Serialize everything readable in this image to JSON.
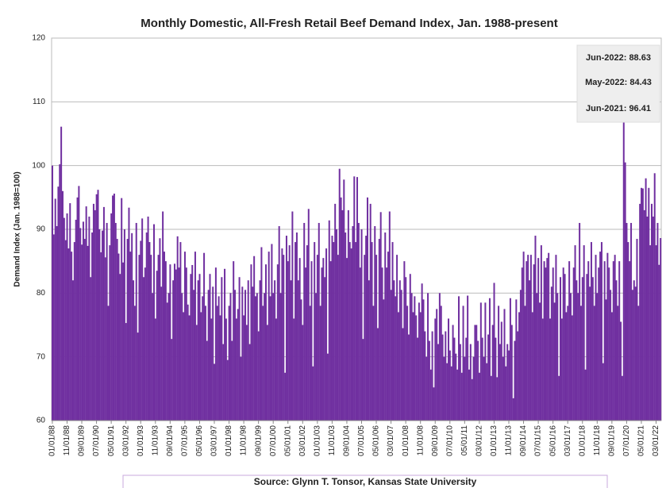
{
  "chart_data": {
    "type": "bar",
    "title": "Monthly Domestic, All-Fresh Retail Beef Demand Index, Jan. 1988-present",
    "y_label": "Demand Index (Jan. 1988=100)",
    "annotations": [
      "Jun-2022: 88.63",
      "May-2022: 84.43",
      "Jun-2021: 96.41"
    ],
    "source": "Source: Glynn T. Tonsor, Kansas State University",
    "color": "#7030a0",
    "ylim": [
      60,
      120
    ],
    "yticks": [
      60,
      70,
      80,
      90,
      100,
      110,
      120
    ],
    "grid": true,
    "categories": [
      "01/01/88",
      null,
      null,
      null,
      null,
      null,
      null,
      null,
      null,
      null,
      "11/01/88",
      null,
      null,
      null,
      null,
      null,
      null,
      null,
      null,
      null,
      "09/01/89",
      null,
      null,
      null,
      null,
      null,
      null,
      null,
      null,
      null,
      "07/01/90",
      null,
      null,
      null,
      null,
      null,
      null,
      null,
      null,
      null,
      "05/01/91",
      null,
      null,
      null,
      null,
      null,
      null,
      null,
      null,
      null,
      "03/01/92",
      null,
      null,
      null,
      null,
      null,
      null,
      null,
      null,
      null,
      "01/01/93",
      null,
      null,
      null,
      null,
      null,
      null,
      null,
      null,
      null,
      "11/01/93",
      null,
      null,
      null,
      null,
      null,
      null,
      null,
      null,
      null,
      "09/01/94",
      null,
      null,
      null,
      null,
      null,
      null,
      null,
      null,
      null,
      "07/01/95",
      null,
      null,
      null,
      null,
      null,
      null,
      null,
      null,
      null,
      "05/01/96",
      null,
      null,
      null,
      null,
      null,
      null,
      null,
      null,
      null,
      "03/01/97",
      null,
      null,
      null,
      null,
      null,
      null,
      null,
      null,
      null,
      "01/01/98",
      null,
      null,
      null,
      null,
      null,
      null,
      null,
      null,
      null,
      "11/01/98",
      null,
      null,
      null,
      null,
      null,
      null,
      null,
      null,
      null,
      "09/01/99",
      null,
      null,
      null,
      null,
      null,
      null,
      null,
      null,
      null,
      "07/01/00",
      null,
      null,
      null,
      null,
      null,
      null,
      null,
      null,
      null,
      "05/01/01",
      null,
      null,
      null,
      null,
      null,
      null,
      null,
      null,
      null,
      "03/01/02",
      null,
      null,
      null,
      null,
      null,
      null,
      null,
      null,
      null,
      "01/01/03",
      null,
      null,
      null,
      null,
      null,
      null,
      null,
      null,
      null,
      "11/01/03",
      null,
      null,
      null,
      null,
      null,
      null,
      null,
      null,
      null,
      "09/01/04",
      null,
      null,
      null,
      null,
      null,
      null,
      null,
      null,
      null,
      "07/01/05",
      null,
      null,
      null,
      null,
      null,
      null,
      null,
      null,
      null,
      "05/01/06",
      null,
      null,
      null,
      null,
      null,
      null,
      null,
      null,
      null,
      "03/01/07",
      null,
      null,
      null,
      null,
      null,
      null,
      null,
      null,
      null,
      "01/01/08",
      null,
      null,
      null,
      null,
      null,
      null,
      null,
      null,
      null,
      "11/01/08",
      null,
      null,
      null,
      null,
      null,
      null,
      null,
      null,
      null,
      "09/01/09",
      null,
      null,
      null,
      null,
      null,
      null,
      null,
      null,
      null,
      "07/01/10",
      null,
      null,
      null,
      null,
      null,
      null,
      null,
      null,
      null,
      "05/01/11",
      null,
      null,
      null,
      null,
      null,
      null,
      null,
      null,
      null,
      "03/01/12",
      null,
      null,
      null,
      null,
      null,
      null,
      null,
      null,
      null,
      "01/01/13",
      null,
      null,
      null,
      null,
      null,
      null,
      null,
      null,
      null,
      "11/01/13",
      null,
      null,
      null,
      null,
      null,
      null,
      null,
      null,
      null,
      "09/01/14",
      null,
      null,
      null,
      null,
      null,
      null,
      null,
      null,
      null,
      "07/01/15",
      null,
      null,
      null,
      null,
      null,
      null,
      null,
      null,
      null,
      "05/01/16",
      null,
      null,
      null,
      null,
      null,
      null,
      null,
      null,
      null,
      "03/01/17",
      null,
      null,
      null,
      null,
      null,
      null,
      null,
      null,
      null,
      "01/01/18",
      null,
      null,
      null,
      null,
      null,
      null,
      null,
      null,
      null,
      "11/01/18",
      null,
      null,
      null,
      null,
      null,
      null,
      null,
      null,
      null,
      "09/01/19",
      null,
      null,
      null,
      null,
      null,
      null,
      null,
      null,
      null,
      "07/01/20",
      null,
      null,
      null,
      null,
      null,
      null,
      null,
      null,
      null,
      "05/01/21",
      null,
      null,
      null,
      null,
      null,
      null,
      null,
      null,
      null,
      "03/01/22",
      null,
      null,
      null
    ],
    "values": [
      100,
      89.2,
      94.8,
      90.5,
      96.7,
      100.2,
      106.1,
      96.0,
      91.8,
      88.3,
      92.5,
      87.0,
      94.1,
      86.5,
      82.0,
      88.0,
      91.5,
      95.0,
      96.8,
      90.2,
      87.6,
      91.2,
      88.5,
      93.6,
      87.4,
      92.0,
      82.5,
      89.5,
      94.0,
      93.0,
      95.5,
      96.2,
      90.0,
      86.4,
      89.8,
      93.5,
      85.6,
      91.0,
      78.0,
      87.5,
      92.5,
      95.3,
      95.6,
      91.0,
      88.5,
      86.2,
      83.0,
      94.9,
      84.8,
      90.0,
      75.3,
      88.5,
      93.4,
      86.5,
      89.4,
      82.0,
      78.0,
      91.0,
      73.8,
      86.0,
      88.2,
      91.7,
      82.5,
      84.0,
      89.5,
      92.0,
      88.0,
      86.0,
      80.0,
      90.8,
      76.0,
      83.5,
      86.0,
      88.6,
      81.0,
      92.8,
      86.5,
      85.0,
      78.5,
      80.0,
      84.5,
      72.8,
      82.0,
      84.6,
      83.7,
      88.9,
      84.0,
      88.0,
      80.0,
      77.0,
      86.5,
      84.0,
      78.2,
      76.5,
      83.0,
      84.4,
      80.5,
      86.5,
      75.0,
      82.0,
      83.0,
      77.0,
      79.5,
      86.3,
      78.0,
      72.5,
      80.5,
      83.0,
      76.0,
      81.0,
      68.9,
      84.0,
      78.0,
      79.5,
      76.5,
      82.5,
      72.0,
      83.8,
      76.0,
      69.5,
      78.0,
      80.0,
      72.5,
      85.0,
      80.5,
      76.0,
      77.5,
      82.5,
      70.0,
      81.0,
      76.5,
      80.5,
      75.0,
      82.0,
      72.0,
      84.5,
      81.0,
      85.8,
      79.5,
      80.0,
      74.0,
      82.0,
      87.2,
      78.0,
      80.0,
      84.5,
      75.0,
      86.5,
      79.5,
      87.7,
      80.0,
      82.0,
      76.0,
      84.5,
      90.5,
      80.0,
      87.0,
      86.0,
      67.5,
      89.0,
      85.0,
      87.5,
      82.0,
      92.8,
      76.0,
      88.0,
      89.5,
      82.0,
      85.5,
      79.0,
      75.0,
      91.0,
      84.0,
      87.5,
      93.2,
      78.0,
      85.0,
      68.5,
      88.0,
      80.0,
      86.0,
      91.0,
      78.0,
      84.0,
      85.5,
      82.5,
      87.0,
      70.5,
      91.4,
      85.0,
      89.0,
      88.0,
      94.0,
      90.0,
      86.0,
      99.5,
      95.0,
      93.0,
      97.8,
      89.5,
      85.5,
      93.0,
      88.0,
      87.0,
      90.5,
      98.3,
      88.0,
      98.2,
      91.0,
      84.0,
      90.0,
      72.8,
      86.0,
      89.0,
      95.0,
      82.0,
      94.0,
      88.0,
      78.0,
      90.5,
      86.0,
      74.5,
      88.5,
      92.7,
      84.0,
      79.0,
      89.5,
      84.0,
      86.5,
      92.8,
      80.5,
      88.0,
      82.0,
      79.5,
      86.0,
      77.0,
      82.0,
      80.5,
      74.5,
      85.0,
      82.5,
      78.0,
      73.5,
      83.0,
      80.0,
      77.0,
      79.5,
      76.5,
      73.0,
      78.5,
      77.0,
      81.5,
      79.0,
      74.0,
      70.0,
      80.0,
      72.5,
      68.0,
      74.0,
      65.2,
      76.0,
      77.5,
      72.0,
      80.0,
      78.0,
      73.5,
      70.0,
      74.0,
      69.0,
      76.0,
      71.0,
      68.5,
      75.0,
      73.0,
      70.5,
      68.0,
      79.5,
      72.0,
      67.5,
      78.0,
      70.0,
      73.0,
      79.6,
      68.0,
      72.0,
      66.5,
      70.0,
      75.0,
      75.0,
      72.5,
      67.5,
      78.5,
      73.0,
      70.0,
      78.5,
      69.0,
      73.5,
      79.2,
      67.0,
      75.0,
      81.6,
      73.0,
      66.8,
      78.0,
      72.0,
      75.5,
      70.0,
      77.5,
      68.5,
      72.0,
      71.0,
      79.2,
      75.0,
      63.5,
      72.5,
      79.0,
      74.0,
      77.0,
      80.5,
      84.0,
      86.5,
      78.0,
      85.0,
      86.0,
      82.0,
      86.0,
      77.0,
      84.5,
      89.0,
      80.0,
      85.5,
      78.5,
      87.5,
      76.0,
      85.0,
      84.0,
      85.5,
      86.3,
      76.0,
      81.0,
      84.0,
      78.5,
      86.0,
      80.0,
      67.0,
      82.5,
      76.0,
      84.0,
      83.0,
      77.0,
      78.0,
      85.0,
      80.0,
      76.5,
      84.0,
      87.5,
      82.0,
      80.0,
      91.0,
      78.0,
      82.5,
      87.5,
      68.0,
      83.0,
      85.0,
      81.0,
      88.0,
      82.5,
      78.0,
      86.0,
      80.0,
      84.0,
      86.5,
      88.0,
      69.0,
      85.0,
      79.0,
      86.3,
      84.0,
      80.5,
      77.0,
      85.0,
      86.0,
      82.0,
      78.0,
      85.0,
      75.5,
      67.0,
      106.8,
      100.5,
      91.0,
      88.0,
      85.0,
      91.0,
      80.5,
      82.0,
      81.0,
      88.5,
      78.0,
      94.0,
      96.5,
      96.41,
      93.0,
      98.0,
      92.0,
      96.5,
      87.5,
      94.0,
      92.0,
      98.8,
      87.5,
      91.0,
      84.43,
      88.63
    ]
  }
}
